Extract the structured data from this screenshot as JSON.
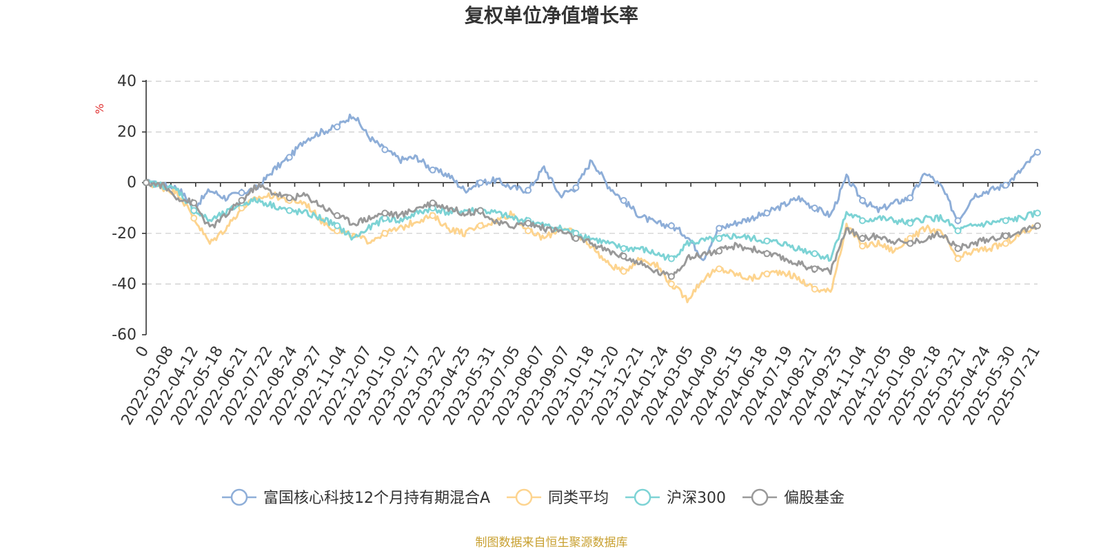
{
  "chart_data": {
    "type": "line",
    "title": "复权单位净值增长率",
    "ylabel": "%",
    "ylim": [
      -60,
      40
    ],
    "yticks": [
      40,
      20,
      0,
      -20,
      -40,
      -60
    ],
    "x_tick_labels": [
      "0",
      "2022-03-08",
      "2022-04-12",
      "2022-05-18",
      "2022-06-21",
      "2022-07-22",
      "2022-08-24",
      "2022-09-27",
      "2022-11-04",
      "2022-12-07",
      "2023-01-10",
      "2023-02-17",
      "2023-03-22",
      "2023-04-25",
      "2023-05-31",
      "2023-07-05",
      "2023-08-07",
      "2023-09-07",
      "2023-10-18",
      "2023-11-20",
      "2023-12-21",
      "2024-01-24",
      "2024-03-05",
      "2024-04-09",
      "2024-05-15",
      "2024-06-18",
      "2024-07-19",
      "2024-08-21",
      "2024-09-25",
      "2024-11-04",
      "2024-12-05",
      "2025-01-08",
      "2025-02-18",
      "2025-03-21",
      "2025-04-24",
      "2025-05-30",
      "2025-07-21"
    ],
    "grid": "y-dashed",
    "legend_position": "bottom",
    "series": [
      {
        "name": "富国核心科技12个月持有期混合A",
        "color": "#8eaed8",
        "values": [
          0,
          -1,
          -2,
          -10,
          -3,
          -6,
          -4,
          -2,
          5,
          10,
          17,
          20,
          22,
          27,
          18,
          13,
          9,
          10,
          5,
          3,
          -3,
          0,
          1,
          -2,
          -3,
          6,
          -5,
          -2,
          9,
          -1,
          -7,
          -13,
          -16,
          -17,
          -21,
          -30,
          -18,
          -16,
          -14,
          -12,
          -9,
          -6,
          -10,
          -13,
          2,
          -7,
          -11,
          -8,
          -6,
          4,
          -2,
          -15,
          -5,
          -3,
          -1,
          5,
          12
        ]
      },
      {
        "name": "同类平均",
        "color": "#fdd48f",
        "values": [
          0,
          -2,
          -4,
          -14,
          -24,
          -18,
          -10,
          -6,
          -5,
          -7,
          -8,
          -15,
          -19,
          -21,
          -23,
          -20,
          -18,
          -15,
          -13,
          -18,
          -20,
          -17,
          -15,
          -12,
          -19,
          -22,
          -18,
          -20,
          -25,
          -32,
          -35,
          -30,
          -32,
          -40,
          -46,
          -38,
          -34,
          -36,
          -38,
          -36,
          -35,
          -38,
          -42,
          -43,
          -17,
          -25,
          -24,
          -27,
          -22,
          -18,
          -20,
          -30,
          -27,
          -26,
          -24,
          -20,
          -17
        ]
      },
      {
        "name": "沪深300",
        "color": "#7dd3d5",
        "values": [
          0,
          -1,
          -3,
          -11,
          -15,
          -12,
          -8,
          -7,
          -9,
          -11,
          -12,
          -14,
          -17,
          -22,
          -18,
          -14,
          -15,
          -12,
          -10,
          -12,
          -11,
          -11,
          -12,
          -14,
          -15,
          -17,
          -18,
          -20,
          -22,
          -24,
          -26,
          -26,
          -28,
          -30,
          -24,
          -23,
          -22,
          -21,
          -22,
          -23,
          -24,
          -26,
          -28,
          -30,
          -12,
          -15,
          -14,
          -15,
          -16,
          -14,
          -14,
          -19,
          -17,
          -16,
          -15,
          -14,
          -12
        ]
      },
      {
        "name": "偏股基金",
        "color": "#999999",
        "values": [
          0,
          -1,
          -6,
          -8,
          -18,
          -13,
          -7,
          -1,
          -4,
          -6,
          -5,
          -9,
          -13,
          -16,
          -14,
          -12,
          -13,
          -10,
          -8,
          -10,
          -12,
          -11,
          -16,
          -17,
          -16,
          -18,
          -19,
          -22,
          -24,
          -27,
          -29,
          -32,
          -35,
          -37,
          -30,
          -28,
          -27,
          -25,
          -26,
          -28,
          -30,
          -32,
          -34,
          -35,
          -18,
          -22,
          -21,
          -23,
          -24,
          -22,
          -20,
          -26,
          -24,
          -22,
          -21,
          -19,
          -17
        ]
      }
    ]
  },
  "footer": {
    "source": "制图数据来自恒生聚源数据库"
  }
}
